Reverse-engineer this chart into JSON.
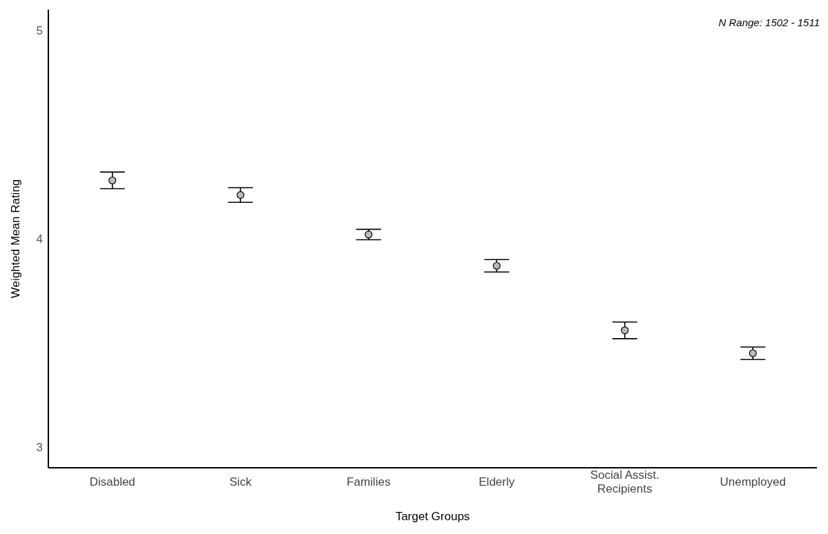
{
  "chart_data": {
    "type": "scatter",
    "xlabel": "Target Groups",
    "ylabel": "Weighted Mean Rating",
    "categories": [
      "Disabled",
      "Sick",
      "Families",
      "Elderly",
      "Social Assist. Recipients",
      "Unemployed"
    ],
    "values": [
      4.28,
      4.21,
      4.02,
      3.87,
      3.56,
      3.45
    ],
    "errors": [
      0.04,
      0.035,
      0.025,
      0.03,
      0.04,
      0.03
    ],
    "color": "#000000",
    "marker": "circle",
    "ylim": [
      2.9,
      5.1
    ],
    "yticks": [
      3,
      4,
      5
    ],
    "grid": false,
    "legend": false,
    "annotations": [
      "N Range: 1502 - 1511"
    ]
  }
}
